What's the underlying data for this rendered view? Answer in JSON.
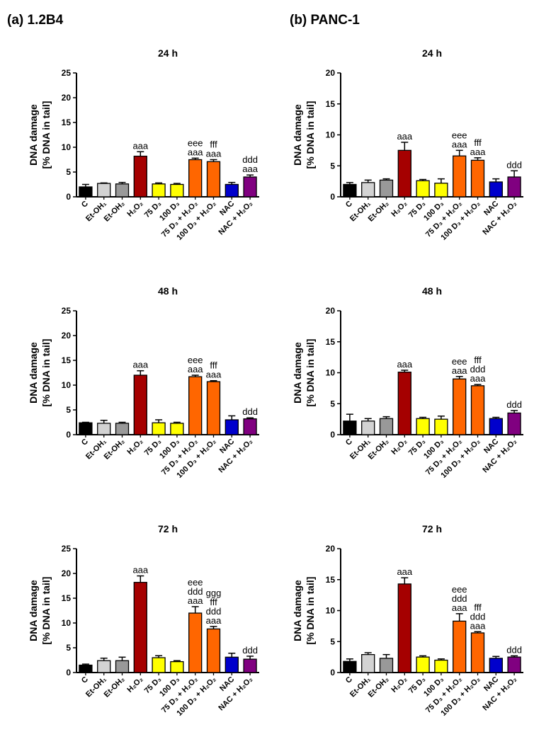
{
  "panels": [
    {
      "label": "(a) 1.2B4"
    },
    {
      "label": "(b) PANC-1"
    }
  ],
  "colors": [
    "#000000",
    "#d3d3d3",
    "#999999",
    "#a50000",
    "#ffff00",
    "#ffff00",
    "#ff6600",
    "#ff6600",
    "#0000cc",
    "#800080"
  ],
  "chart_data": [
    {
      "type": "bar",
      "title": "24 h",
      "panel": "(a) 1.2B4",
      "ylabel": [
        "DNA damage",
        "[% DNA in tail]"
      ],
      "xlabel": "",
      "ylim": [
        0,
        25
      ],
      "yticks": [
        0,
        5,
        10,
        15,
        20,
        25
      ],
      "categories": [
        "C",
        "Et-OH₁",
        "Et-OH₂",
        "H₂O₂",
        "75 D₃",
        "100 D₃",
        "75 D₃ + H₂O₂",
        "100 D₃ + H₂O₂",
        "NAC",
        "NAC + H₂O₂"
      ],
      "values": [
        2.0,
        2.7,
        2.6,
        8.2,
        2.6,
        2.5,
        7.5,
        7.1,
        2.5,
        4.0
      ],
      "errors": [
        0.5,
        0.1,
        0.3,
        0.9,
        0.2,
        0.2,
        0.3,
        0.4,
        0.4,
        0.4
      ],
      "annotations": [
        [],
        [],
        [],
        [
          "aaa"
        ],
        [],
        [],
        [
          "eee",
          "aaa"
        ],
        [
          "fff",
          "aaa"
        ],
        [],
        [
          "ddd",
          "aaa"
        ]
      ]
    },
    {
      "type": "bar",
      "title": "24 h",
      "panel": "(b) PANC-1",
      "ylabel": [
        "DNA damage",
        "[% DNA in tail]"
      ],
      "xlabel": "",
      "ylim": [
        0,
        20
      ],
      "yticks": [
        0,
        5,
        10,
        15,
        20
      ],
      "categories": [
        "C",
        "Et-OH₁",
        "Et-OH₂",
        "H₂O₂",
        "75 D₃",
        "100 D₃",
        "75 D₃ + H₂O₂",
        "100 D₃ + H₂O₂",
        "NAC",
        "NAC + H₂O₂"
      ],
      "values": [
        2.0,
        2.3,
        2.7,
        7.5,
        2.6,
        2.2,
        6.6,
        5.9,
        2.4,
        3.2
      ],
      "errors": [
        0.3,
        0.4,
        0.2,
        1.3,
        0.2,
        0.7,
        0.9,
        0.4,
        0.5,
        1.0
      ],
      "annotations": [
        [],
        [],
        [],
        [
          "aaa"
        ],
        [],
        [],
        [
          "eee",
          "aaa"
        ],
        [
          "fff",
          "aaa"
        ],
        [],
        [
          "ddd"
        ]
      ]
    },
    {
      "type": "bar",
      "title": "48 h",
      "panel": "(a) 1.2B4",
      "ylabel": [
        "DNA damage",
        "[% DNA in tail]"
      ],
      "xlabel": "",
      "ylim": [
        0,
        25
      ],
      "yticks": [
        0,
        5,
        10,
        15,
        20,
        25
      ],
      "categories": [
        "C",
        "Et-OH₁",
        "Et-OH₂",
        "H₂O₂",
        "75 D₃",
        "100 D₃",
        "75 D₃ + H₂O₂",
        "100 D₃ + H₂O₂",
        "NAC",
        "NAC + H₂O₂"
      ],
      "values": [
        2.4,
        2.3,
        2.3,
        12.0,
        2.4,
        2.3,
        11.7,
        10.7,
        3.0,
        3.2
      ],
      "errors": [
        0.1,
        0.6,
        0.2,
        0.9,
        0.6,
        0.2,
        0.3,
        0.2,
        0.8,
        0.2
      ],
      "annotations": [
        [],
        [],
        [],
        [
          "aaa"
        ],
        [],
        [],
        [
          "eee",
          "aaa"
        ],
        [
          "fff",
          "aaa"
        ],
        [],
        [
          "ddd"
        ]
      ]
    },
    {
      "type": "bar",
      "title": "48 h",
      "panel": "(b) PANC-1",
      "ylabel": [
        "DNA damage",
        "[% DNA in tail]"
      ],
      "xlabel": "",
      "ylim": [
        0,
        20
      ],
      "yticks": [
        0,
        5,
        10,
        15,
        20
      ],
      "categories": [
        "C",
        "Et-OH₁",
        "Et-OH₂",
        "H₂O₂",
        "75 D₃",
        "100 D₃",
        "75 D₃ + H₂O₂",
        "100 D₃ + H₂O₂",
        "NAC",
        "NAC + H₂O₂"
      ],
      "values": [
        2.2,
        2.2,
        2.6,
        10.1,
        2.6,
        2.5,
        9.0,
        7.9,
        2.6,
        3.5
      ],
      "errors": [
        1.1,
        0.4,
        0.3,
        0.3,
        0.2,
        0.5,
        0.4,
        0.2,
        0.2,
        0.4
      ],
      "annotations": [
        [],
        [],
        [],
        [
          "aaa"
        ],
        [],
        [],
        [
          "eee",
          "aaa"
        ],
        [
          "fff",
          "ddd",
          "aaa"
        ],
        [],
        [
          "ddd"
        ]
      ]
    },
    {
      "type": "bar",
      "title": "72 h",
      "panel": "(a) 1.2B4",
      "ylabel": [
        "DNA damage",
        "[% DNA in tail]"
      ],
      "xlabel": "",
      "ylim": [
        0,
        25
      ],
      "yticks": [
        0,
        5,
        10,
        15,
        20,
        25
      ],
      "categories": [
        "C",
        "Et-OH₁",
        "Et-OH₂",
        "H₂O₂",
        "75 D₃",
        "100 D₃",
        "75 D₃ + H₂O₂",
        "100 D₃ + H₂O₂",
        "NAC",
        "NAC + H₂O₂"
      ],
      "values": [
        1.5,
        2.4,
        2.4,
        18.2,
        3.0,
        2.2,
        12.0,
        8.8,
        3.1,
        2.7
      ],
      "errors": [
        0.2,
        0.5,
        0.7,
        1.3,
        0.4,
        0.2,
        1.3,
        0.5,
        0.8,
        0.6
      ],
      "annotations": [
        [],
        [],
        [],
        [
          "aaa"
        ],
        [],
        [],
        [
          "eee",
          "ddd",
          "aaa"
        ],
        [
          "ggg",
          "fff",
          "ddd",
          "aaa"
        ],
        [],
        [
          "ddd"
        ]
      ]
    },
    {
      "type": "bar",
      "title": "72 h",
      "panel": "(b) PANC-1",
      "ylabel": [
        "DNA damage",
        "[% DNA in tail]"
      ],
      "xlabel": "",
      "ylim": [
        0,
        20
      ],
      "yticks": [
        0,
        5,
        10,
        15,
        20
      ],
      "categories": [
        "C",
        "Et-OH₁",
        "Et-OH₂",
        "H₂O₂",
        "75 D₃",
        "100 D₃",
        "75 D₃ + H₂O₂",
        "100 D₃ + H₂O₂",
        "NAC",
        "NAC + H₂O₂"
      ],
      "values": [
        1.8,
        2.9,
        2.3,
        14.3,
        2.5,
        2.0,
        8.3,
        6.4,
        2.3,
        2.5
      ],
      "errors": [
        0.4,
        0.3,
        0.6,
        1.0,
        0.2,
        0.2,
        1.2,
        0.2,
        0.3,
        0.2
      ],
      "annotations": [
        [],
        [],
        [],
        [
          "aaa"
        ],
        [],
        [],
        [
          "eee",
          "ddd",
          "aaa"
        ],
        [
          "fff",
          "ddd",
          "aaa"
        ],
        [],
        [
          "ddd"
        ]
      ]
    }
  ]
}
